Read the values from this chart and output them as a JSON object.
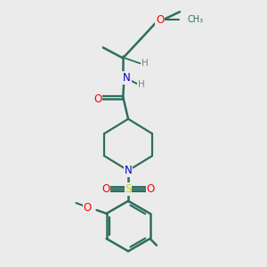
{
  "background_color": "#ebebeb",
  "bond_color": "#2d6e5e",
  "atom_colors": {
    "O": "#ff0000",
    "N": "#0000cc",
    "S": "#cccc00",
    "C": "#2d6e5e",
    "H": "#808080"
  },
  "figsize": [
    3.0,
    3.0
  ],
  "dpi": 100
}
